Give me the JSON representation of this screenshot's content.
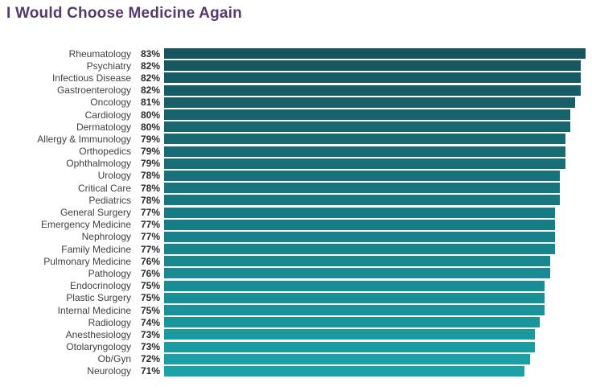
{
  "page": {
    "background": "#FFFFFF"
  },
  "chart_data": {
    "type": "bar",
    "orientation": "horizontal",
    "title": "I Would Choose Medicine Again",
    "title_color": "#56396F",
    "categories": [
      "Rheumatology",
      "Psychiatry",
      "Infectious Disease",
      "Gastroenterology",
      "Oncology",
      "Cardiology",
      "Dermatology",
      "Allergy & Immunology",
      "Orthopedics",
      "Ophthalmology",
      "Urology",
      "Critical Care",
      "Pediatrics",
      "General Surgery",
      "Emergency Medicine",
      "Nephrology",
      "Family Medicine",
      "Pulmonary Medicine",
      "Pathology",
      "Endocrinology",
      "Plastic Surgery",
      "Internal Medicine",
      "Radiology",
      "Anesthesiology",
      "Otolaryngology",
      "Ob/Gyn",
      "Neurology"
    ],
    "values": [
      83,
      82,
      82,
      82,
      81,
      80,
      80,
      79,
      79,
      79,
      78,
      78,
      78,
      77,
      77,
      77,
      77,
      76,
      76,
      75,
      75,
      75,
      74,
      73,
      73,
      72,
      71
    ],
    "value_suffix": "%",
    "xlabel": "",
    "ylabel": "",
    "xlim": [
      0,
      83
    ],
    "grid": false,
    "legend": false,
    "value_labels_shown": true,
    "bar_color_start": "#16545F",
    "bar_color_end": "#1AA2A7",
    "category_label_color": "#414141",
    "value_label_color": "#2B2B2B"
  }
}
